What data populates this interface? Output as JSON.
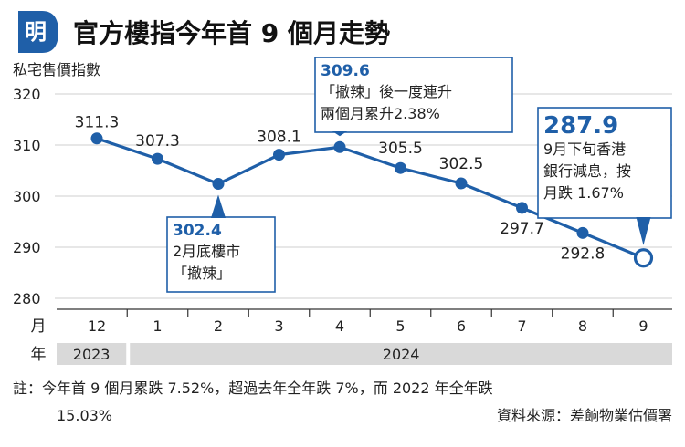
{
  "header": {
    "logo_char": "明",
    "title": "官方樓指今年首 9 個月走勢"
  },
  "chart_data": {
    "type": "line",
    "title": "官方樓指今年首 9 個月走勢",
    "ylabel": "私宅售價指數",
    "ylim": [
      280,
      320
    ],
    "yticks": [
      280,
      290,
      300,
      310,
      320
    ],
    "x": [
      "12",
      "1",
      "2",
      "3",
      "4",
      "5",
      "6",
      "7",
      "8",
      "9"
    ],
    "x_axis_label": "月",
    "year_row_label": "年",
    "year_groups": [
      {
        "label": "2023",
        "span": [
          "12"
        ]
      },
      {
        "label": "2024",
        "span": [
          "1",
          "9"
        ]
      }
    ],
    "series": [
      {
        "name": "私宅售價指數",
        "values": [
          311.3,
          307.3,
          302.4,
          308.1,
          309.6,
          305.5,
          302.5,
          297.7,
          292.8,
          287.9
        ]
      }
    ],
    "labels": [
      "311.3",
      "307.3",
      "302.4",
      "308.1",
      "309.6",
      "305.5",
      "302.5",
      "297.7",
      "292.8",
      "287.9"
    ],
    "annotations": [
      {
        "index": 2,
        "value": "302.4",
        "lines": [
          "2月底樓市",
          "「撤辣」"
        ]
      },
      {
        "index": 4,
        "value": "309.6",
        "lines": [
          "「撤辣」後一度連升",
          "兩個月累升2.38%"
        ]
      },
      {
        "index": 9,
        "value": "287.9",
        "lines": [
          "9月下旬香港",
          "銀行減息，按",
          "月跌 1.67%"
        ]
      }
    ],
    "colors": {
      "line": "#1f5fa8",
      "accent": "#1f5fa8",
      "grid": "#cfcfcf",
      "band": "#d9d9d9"
    }
  },
  "footer": {
    "note_line1": "註：今年首 9 個月累跌 7.52%，超過去年全年跌 7%，而 2022 年全年跌",
    "note_line2": "15.03%",
    "source": "資料來源：差餉物業估價署"
  }
}
